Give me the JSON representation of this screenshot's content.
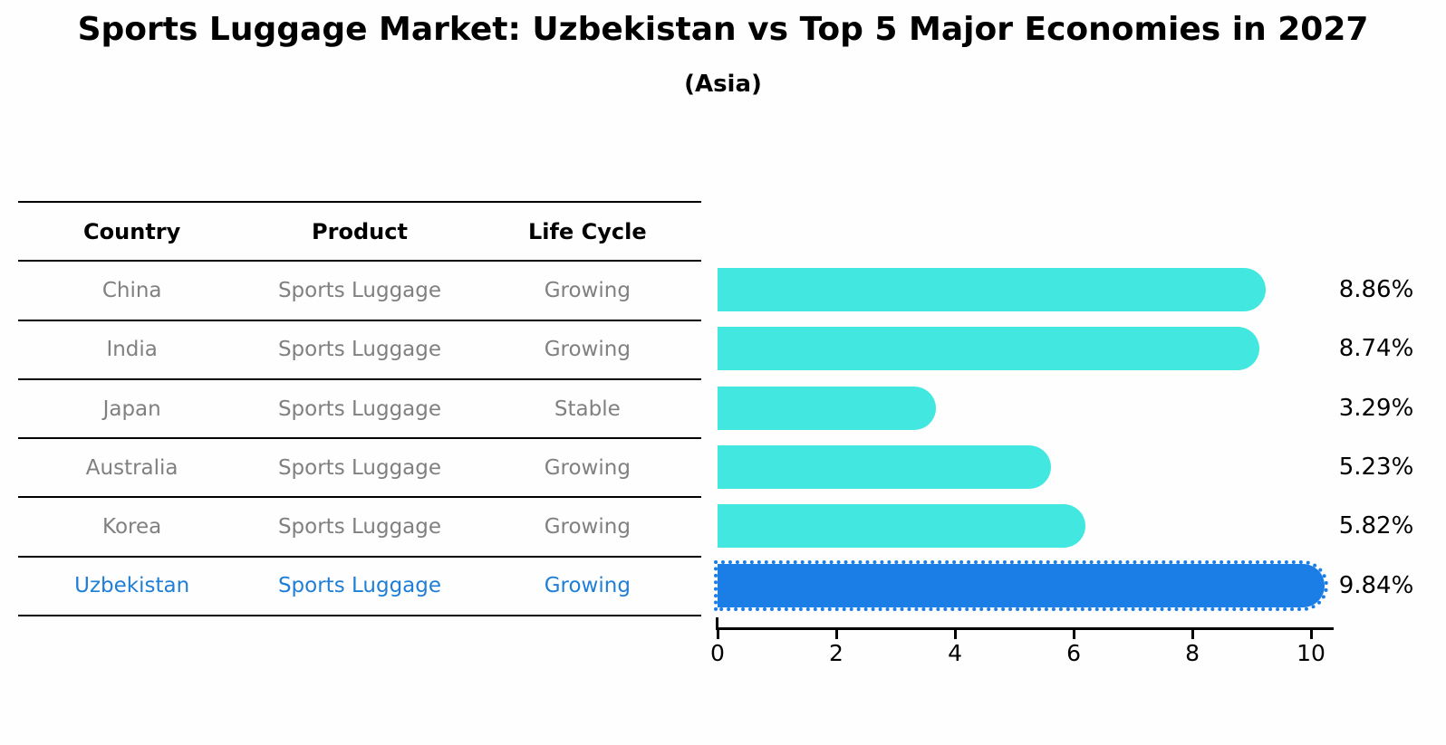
{
  "title": "Sports Luggage Market: Uzbekistan vs Top 5 Major Economies in 2027",
  "subtitle": "(Asia)",
  "table": {
    "headers": [
      "Country",
      "Product",
      "Life Cycle"
    ],
    "rows": [
      {
        "country": "China",
        "product": "Sports Luggage",
        "life_cycle": "Growing"
      },
      {
        "country": "India",
        "product": "Sports Luggage",
        "life_cycle": "Growing"
      },
      {
        "country": "Japan",
        "product": "Sports Luggage",
        "life_cycle": "Stable"
      },
      {
        "country": "Australia",
        "product": "Sports Luggage",
        "life_cycle": "Growing"
      },
      {
        "country": "Korea",
        "product": "Sports Luggage",
        "life_cycle": "Growing"
      },
      {
        "country": "Uzbekistan",
        "product": "Sports Luggage",
        "life_cycle": "Growing"
      }
    ]
  },
  "chart_data": {
    "type": "bar",
    "orientation": "horizontal",
    "title": "Sports Luggage Market: Uzbekistan vs Top 5 Major Economies in 2027 (Asia)",
    "categories": [
      "China",
      "India",
      "Japan",
      "Australia",
      "Korea",
      "Uzbekistan"
    ],
    "values": [
      8.86,
      8.74,
      3.29,
      5.23,
      5.82,
      9.84
    ],
    "value_labels": [
      "8.86%",
      "8.74%",
      "3.29%",
      "5.23%",
      "5.82%",
      "9.84%"
    ],
    "xlabel": "",
    "ylabel": "",
    "xlim": [
      0,
      10.35
    ],
    "xticks": [
      0,
      2,
      4,
      6,
      8,
      10
    ],
    "grid": false,
    "legend": false,
    "highlight_index": 5
  },
  "colors": {
    "bar_cyan": "#42e8e0",
    "bar_highlight_blue": "#1b7de6",
    "highlight_text_blue": "#1f7fd6",
    "muted_text_gray": "#808080",
    "axis_black": "#000000"
  }
}
